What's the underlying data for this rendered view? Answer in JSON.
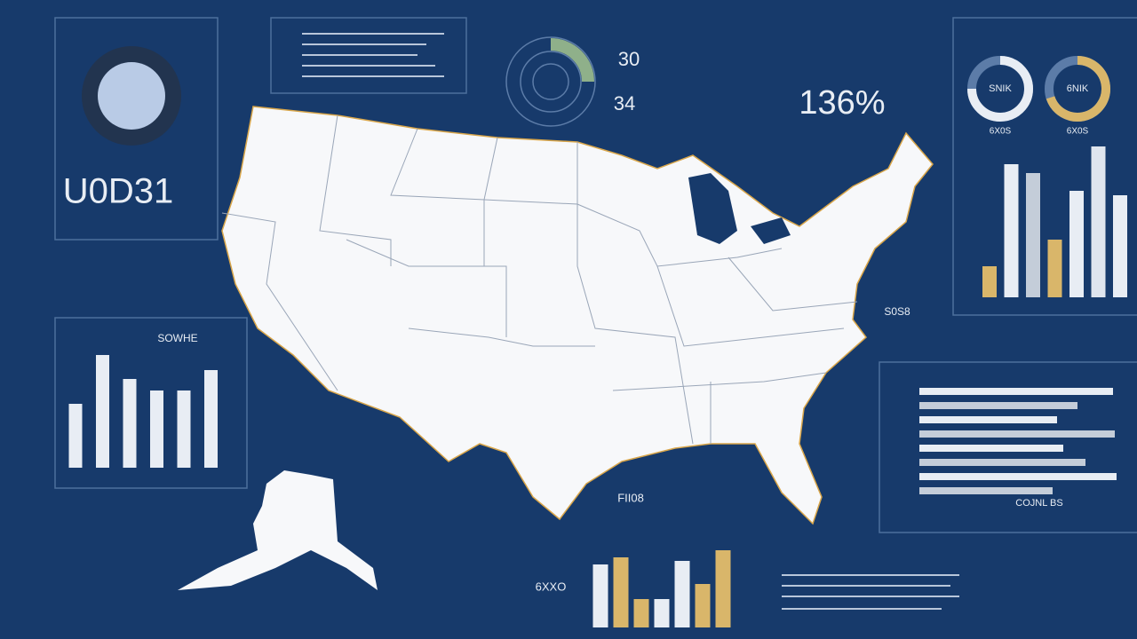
{
  "left_panel": {
    "label": "U0D31"
  },
  "gauge": {
    "value": 25,
    "labels": [
      "30",
      "34"
    ]
  },
  "stat": "136%",
  "donuts": [
    {
      "label": "SNIK",
      "caption": "6X0S",
      "value": 75,
      "color": "#e8edf4"
    },
    {
      "label": "6NIK",
      "caption": "6X0S",
      "value": 70,
      "color": "#d9b66a"
    }
  ],
  "right_bar_chart": {
    "values": [
      35,
      150,
      140,
      65,
      120,
      170,
      115
    ],
    "colors": [
      "#d9b66a",
      "#e8edf4",
      "#c4cdd9",
      "#d9b66a",
      "#e8edf4",
      "#dfe5ee",
      "#e8edf4"
    ]
  },
  "left_bar_chart": {
    "title": "SOWHE",
    "values": [
      72,
      127,
      100,
      87,
      87,
      110
    ]
  },
  "hbar_chart": {
    "title": "COJNL BS",
    "values": [
      218,
      178,
      155,
      220,
      162,
      187,
      222,
      150
    ]
  },
  "bottom_bar_chart": {
    "values": [
      71,
      79,
      32,
      32,
      75,
      49,
      87
    ],
    "colors": [
      "#e8edf4",
      "#d9b66a",
      "#d9b66a",
      "#e8edf4",
      "#e8edf4",
      "#d9b66a",
      "#d9b66a"
    ]
  },
  "map_labels": [
    "FII08",
    "S0S8",
    "6XXO"
  ]
}
